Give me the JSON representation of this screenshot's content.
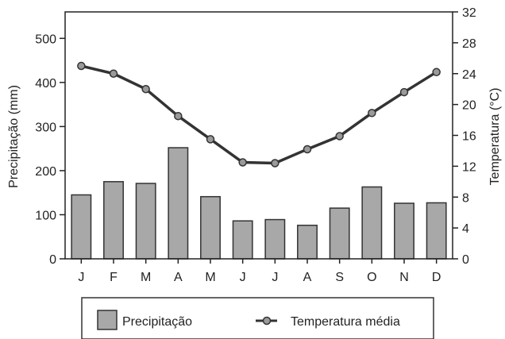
{
  "chart_data": {
    "type": "bar+line",
    "categories": [
      "J",
      "F",
      "M",
      "A",
      "M",
      "J",
      "J",
      "A",
      "S",
      "O",
      "N",
      "D"
    ],
    "series": [
      {
        "name": "Precipitação",
        "type": "bar",
        "axis": "left",
        "values": [
          145,
          175,
          171,
          252,
          141,
          86,
          89,
          76,
          115,
          163,
          126,
          127
        ]
      },
      {
        "name": "Temperatura média",
        "type": "line",
        "axis": "right",
        "values": [
          25,
          24,
          22,
          18.5,
          15.5,
          12.5,
          12.4,
          14.2,
          15.9,
          18.9,
          21.6,
          24.2
        ]
      }
    ],
    "ylabel": "Precipitação (mm)",
    "y2label": "Temperatura (°C)",
    "ylim": [
      0,
      560
    ],
    "y2lim": [
      0,
      32
    ],
    "yticks": [
      "0",
      "100",
      "200",
      "300",
      "400",
      "500"
    ],
    "y2ticks": [
      "0",
      "4",
      "8",
      "12",
      "16",
      "20",
      "24",
      "28",
      "32"
    ],
    "legend_position": "bottom",
    "grid": false,
    "colors": {
      "bar_fill": "#a8a8a8",
      "bar_stroke": "#333333",
      "line": "#333333",
      "marker_fill": "#9a9a9a",
      "axis": "#222222"
    }
  }
}
